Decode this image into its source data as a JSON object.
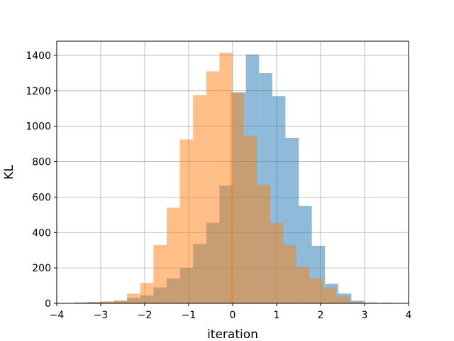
{
  "chart_data": {
    "type": "histogram",
    "title": "",
    "xlabel": "iteration",
    "ylabel": "KL",
    "xlim": [
      -4.0,
      4.0
    ],
    "ylim": [
      0,
      1480
    ],
    "grid": true,
    "legend": "none",
    "xticks": [
      -4,
      -3,
      -2,
      -1,
      0,
      1,
      2,
      3,
      4
    ],
    "xtick_labels": [
      "−4",
      "−3",
      "−2",
      "−1",
      "0",
      "1",
      "2",
      "3",
      "4"
    ],
    "yticks": [
      0,
      200,
      400,
      600,
      800,
      1000,
      1200,
      1400
    ],
    "ytick_labels": [
      "0",
      "200",
      "400",
      "600",
      "800",
      "1000",
      "1200",
      "1400"
    ],
    "series": [
      {
        "color": "#1f77b4",
        "opacity": 0.5,
        "bin_width": 0.3,
        "bins": [
          [
            -3.6,
            5
          ],
          [
            -3.3,
            8
          ],
          [
            -3.0,
            10
          ],
          [
            -2.7,
            15
          ],
          [
            -2.4,
            30
          ],
          [
            -2.1,
            45
          ],
          [
            -1.8,
            90
          ],
          [
            -1.5,
            140
          ],
          [
            -1.2,
            200
          ],
          [
            -0.9,
            335
          ],
          [
            -0.6,
            455
          ],
          [
            -0.3,
            665
          ],
          [
            0.0,
            1190
          ],
          [
            0.3,
            1405
          ],
          [
            0.6,
            1300
          ],
          [
            0.9,
            1170
          ],
          [
            1.2,
            935
          ],
          [
            1.5,
            550
          ],
          [
            1.8,
            325
          ],
          [
            2.1,
            110
          ],
          [
            2.4,
            55
          ],
          [
            2.7,
            15
          ],
          [
            3.0,
            5
          ]
        ]
      },
      {
        "color": "#ff7f0e",
        "opacity": 0.5,
        "bin_width": 0.3,
        "bins": [
          [
            -3.3,
            5
          ],
          [
            -3.0,
            10
          ],
          [
            -2.7,
            15
          ],
          [
            -2.4,
            55
          ],
          [
            -2.1,
            115
          ],
          [
            -1.8,
            330
          ],
          [
            -1.5,
            540
          ],
          [
            -1.2,
            925
          ],
          [
            -0.9,
            1175
          ],
          [
            -0.6,
            1310
          ],
          [
            -0.3,
            1415
          ],
          [
            -0.05,
            1190
          ],
          [
            0.25,
            945
          ],
          [
            0.55,
            670
          ],
          [
            0.85,
            455
          ],
          [
            1.15,
            330
          ],
          [
            1.45,
            205
          ],
          [
            1.75,
            140
          ],
          [
            2.05,
            90
          ],
          [
            2.35,
            40
          ],
          [
            2.65,
            10
          ],
          [
            3.35,
            5
          ]
        ]
      }
    ]
  }
}
